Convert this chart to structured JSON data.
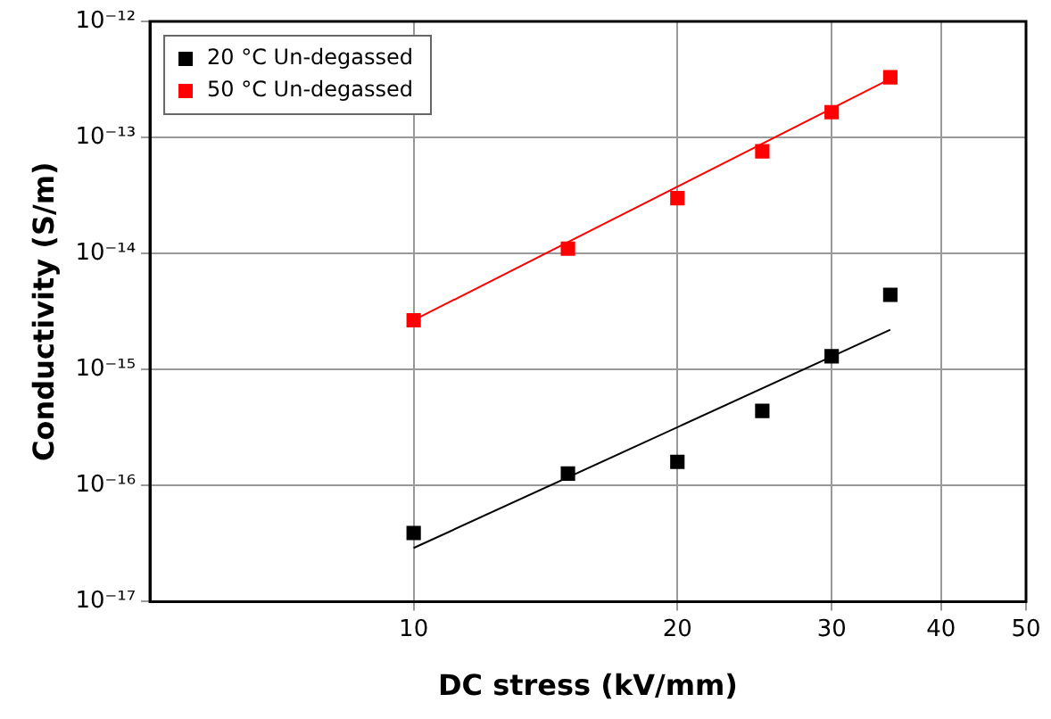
{
  "chart_data": {
    "type": "scatter",
    "xlabel": "DC stress (kV/mm)",
    "ylabel": "Conductivity (S/m)",
    "log": "xy",
    "xlim": [
      5,
      50
    ],
    "xticks": [
      10,
      20,
      30,
      40,
      50
    ],
    "ylim": [
      1e-17,
      1e-12
    ],
    "yticks": [
      {
        "value": 1e-17,
        "label": "10⁻¹⁷"
      },
      {
        "value": 1e-16,
        "label": "10⁻¹⁶"
      },
      {
        "value": 1e-15,
        "label": "10⁻¹⁵"
      },
      {
        "value": 1e-14,
        "label": "10⁻¹⁴"
      },
      {
        "value": 1e-13,
        "label": "10⁻¹³"
      },
      {
        "value": 1e-12,
        "label": "10⁻¹²"
      }
    ],
    "grid": true,
    "legend": "top left",
    "series": [
      {
        "name": "20 °C Un-degassed",
        "color": "#000000",
        "marker": "square",
        "x": [
          10,
          15,
          20,
          25,
          30,
          35
        ],
        "values": [
          3.9e-17,
          1.27e-16,
          1.6e-16,
          4.4e-16,
          1.3e-15,
          4.4e-15
        ]
      },
      {
        "name": "50 °C Un-degassed",
        "color": "#ff0000",
        "marker": "square",
        "x": [
          10,
          15,
          20,
          25,
          30,
          35
        ],
        "values": [
          2.66e-15,
          1.1e-14,
          3e-14,
          7.6e-14,
          1.65e-13,
          3.3e-13
        ]
      },
      {
        "type": "line",
        "color": "#000000",
        "marker": "none",
        "x": [
          10,
          35
        ],
        "values": [
          2.9e-17,
          2.2e-15
        ]
      },
      {
        "type": "line",
        "color": "#ff0000",
        "marker": "none",
        "x": [
          10,
          35
        ],
        "values": [
          2.66e-15,
          3.2e-13
        ]
      }
    ]
  }
}
